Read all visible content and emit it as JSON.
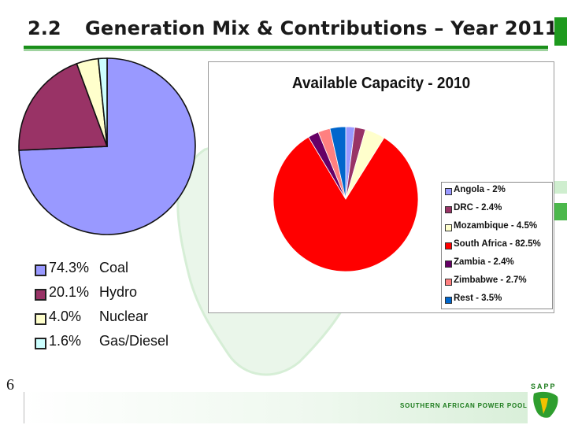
{
  "header": {
    "section_number": "2.2",
    "title": "Generation Mix & Contributions – Year 2011"
  },
  "colors": {
    "accent_green": "#1a8f1a"
  },
  "chart_data": [
    {
      "type": "pie",
      "title": "",
      "slices": [
        {
          "label": "Coal",
          "pct_label": "74.3%",
          "value": 74.3,
          "color": "#9999ff"
        },
        {
          "label": "Hydro",
          "pct_label": "20.1%",
          "value": 20.1,
          "color": "#993366"
        },
        {
          "label": "Nuclear",
          "pct_label": "4.0%",
          "value": 4.0,
          "color": "#ffffcc"
        },
        {
          "label": "Gas/Diesel",
          "pct_label": "1.6%",
          "value": 1.6,
          "color": "#ccffff"
        }
      ],
      "legend_position": "bottom"
    },
    {
      "type": "pie",
      "title": "Available Capacity - 2010",
      "slices": [
        {
          "label": "Angola - 2%",
          "value": 2.0,
          "color": "#9999ff"
        },
        {
          "label": "DRC - 2.4%",
          "value": 2.4,
          "color": "#993366"
        },
        {
          "label": "Mozambique - 4.5%",
          "value": 4.5,
          "color": "#ffffcc"
        },
        {
          "label": "South Africa - 82.5%",
          "value": 82.5,
          "color": "#ff0000"
        },
        {
          "label": "Zambia - 2.4%",
          "value": 2.4,
          "color": "#660066"
        },
        {
          "label": "Zimbabwe - 2.7%",
          "value": 2.7,
          "color": "#ff8080"
        },
        {
          "label": "Rest - 3.5%",
          "value": 3.5,
          "color": "#0066cc"
        }
      ],
      "legend_position": "right"
    }
  ],
  "footer": {
    "page_number": "6",
    "organization": "SOUTHERN AFRICAN POWER POOL",
    "logo_text": "SAPP"
  }
}
